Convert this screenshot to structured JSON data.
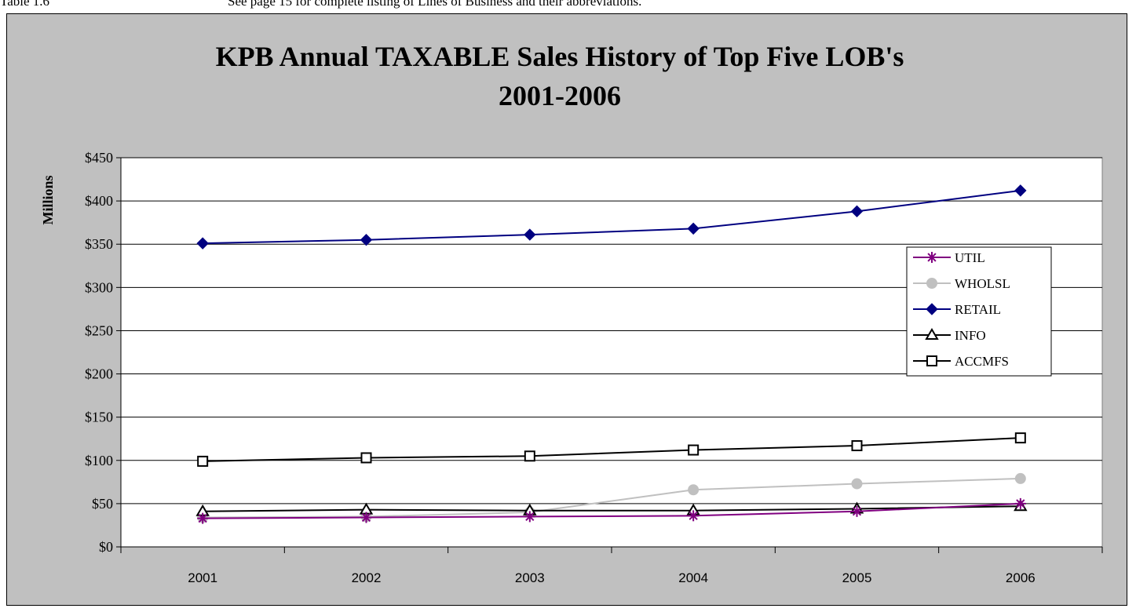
{
  "caption": {
    "label": "Table 1.6",
    "note": "See page 15 for complete listing of Lines of Business and their abbreviations."
  },
  "chart_data": {
    "type": "line",
    "title": [
      "KPB Annual TAXABLE Sales History of Top Five LOB's",
      "2001-2006"
    ],
    "xlabel": "",
    "ylabel": "Millions",
    "categories": [
      "2001",
      "2002",
      "2003",
      "2004",
      "2005",
      "2006"
    ],
    "ylim": [
      0,
      450
    ],
    "yticks": [
      0,
      50,
      100,
      150,
      200,
      250,
      300,
      350,
      400,
      450
    ],
    "ytick_labels": [
      "$0",
      "$50",
      "$100",
      "$150",
      "$200",
      "$250",
      "$300",
      "$350",
      "$400",
      "$450"
    ],
    "grid": "horizontal",
    "legend_position": "right",
    "series": [
      {
        "name": "UTIL",
        "color": "#800080",
        "marker": "asterisk",
        "values": [
          33,
          34,
          35,
          36,
          41,
          50
        ]
      },
      {
        "name": "WHOLSL",
        "color": "#c0c0c0",
        "marker": "circle",
        "values": [
          34,
          35,
          40,
          66,
          73,
          79
        ]
      },
      {
        "name": "RETAIL",
        "color": "#000080",
        "marker": "diamond",
        "values": [
          351,
          355,
          361,
          368,
          388,
          412
        ]
      },
      {
        "name": "INFO",
        "color": "#000000",
        "marker": "triangle",
        "values": [
          41,
          43,
          42,
          42,
          44,
          47
        ]
      },
      {
        "name": "ACCMFS",
        "color": "#000000",
        "marker": "square",
        "values": [
          99,
          103,
          105,
          112,
          117,
          126
        ]
      }
    ]
  }
}
